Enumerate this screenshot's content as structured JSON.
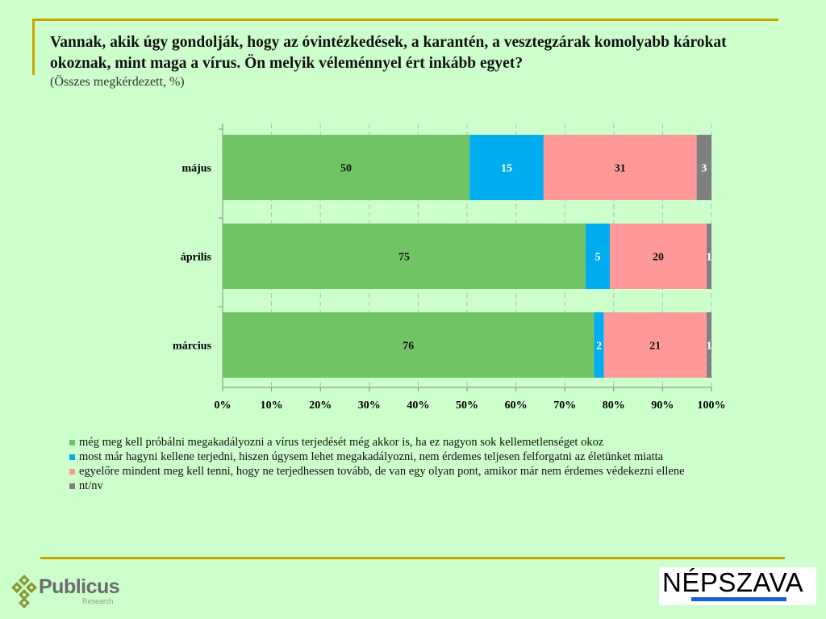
{
  "header": {
    "title": "Vannak, akik úgy gondolják, hogy az óvintézkedések, a karantén, a vesztegzárak komolyabb károkat okoznak, mint maga a vírus. Ön melyik véleménnyel ért inkább egyet?",
    "subtitle": "(Összes megkérdezett, %)"
  },
  "chart_data": {
    "type": "bar",
    "orientation": "horizontal",
    "stacked": true,
    "categories": [
      "május",
      "április",
      "március"
    ],
    "series": [
      {
        "name": "még meg kell próbálni megakadályozni a vírus terjedését még akkor is, ha ez nagyon sok kellemetlenséget okoz",
        "color": "#70c464",
        "values": [
          50,
          75,
          76
        ],
        "label_color": "#111111"
      },
      {
        "name": "most már hagyni kellene terjedni, hiszen úgysem lehet megakadályozni, nem érdemes teljesen felforgatni az életünket miatta",
        "color": "#00aeef",
        "values": [
          15,
          5,
          2
        ],
        "label_color": "#ffffff"
      },
      {
        "name": "egyelőre mindent meg kell tenni, hogy ne terjedhessen tovább, de van egy olyan pont, amikor már nem érdemes védekezni ellene",
        "color": "#ff9999",
        "values": [
          31,
          20,
          21
        ],
        "label_color": "#111111"
      },
      {
        "name": "nt/nv",
        "color": "#808080",
        "values": [
          3,
          1,
          1
        ],
        "label_color": "#ffffff"
      }
    ],
    "xticks": [
      "0%",
      "10%",
      "20%",
      "30%",
      "40%",
      "50%",
      "60%",
      "70%",
      "80%",
      "90%",
      "100%"
    ],
    "xlim": [
      0,
      100
    ],
    "grid": "vertical dashed",
    "legend": "bottom"
  },
  "footer": {
    "publicus_logo": "Publicus",
    "publicus_sub": "Research",
    "nepszava_logo": "NÉPSZAVA"
  }
}
